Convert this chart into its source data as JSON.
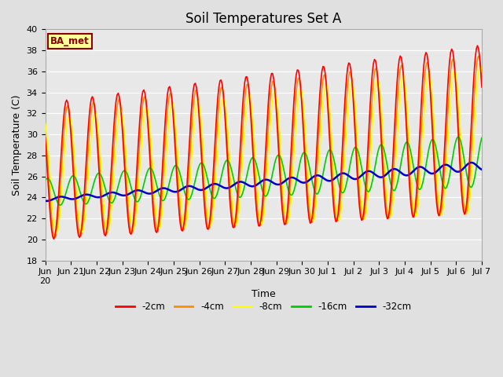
{
  "title": "Soil Temperatures Set A",
  "xlabel": "Time",
  "ylabel": "Soil Temperature (C)",
  "ylim": [
    18,
    40
  ],
  "yticks": [
    18,
    20,
    22,
    24,
    26,
    28,
    30,
    32,
    34,
    36,
    38,
    40
  ],
  "plot_bg_color": "#e8e8e8",
  "fig_bg_color": "#e0e0e0",
  "legend_label": "BA_met",
  "legend_bg": "#ffff99",
  "legend_border": "#8b0000",
  "line_colors": {
    "-2cm": "#ff0000",
    "-4cm": "#ff8c00",
    "-8cm": "#ffff00",
    "-16cm": "#00cc00",
    "-32cm": "#0000cc"
  },
  "line_widths": {
    "-2cm": 1.2,
    "-4cm": 1.2,
    "-8cm": 1.2,
    "-16cm": 1.2,
    "-32cm": 1.8
  },
  "title_fontsize": 12,
  "axis_label_fontsize": 9,
  "tick_fontsize": 8,
  "n_days": 16,
  "hours_per_day": 24
}
